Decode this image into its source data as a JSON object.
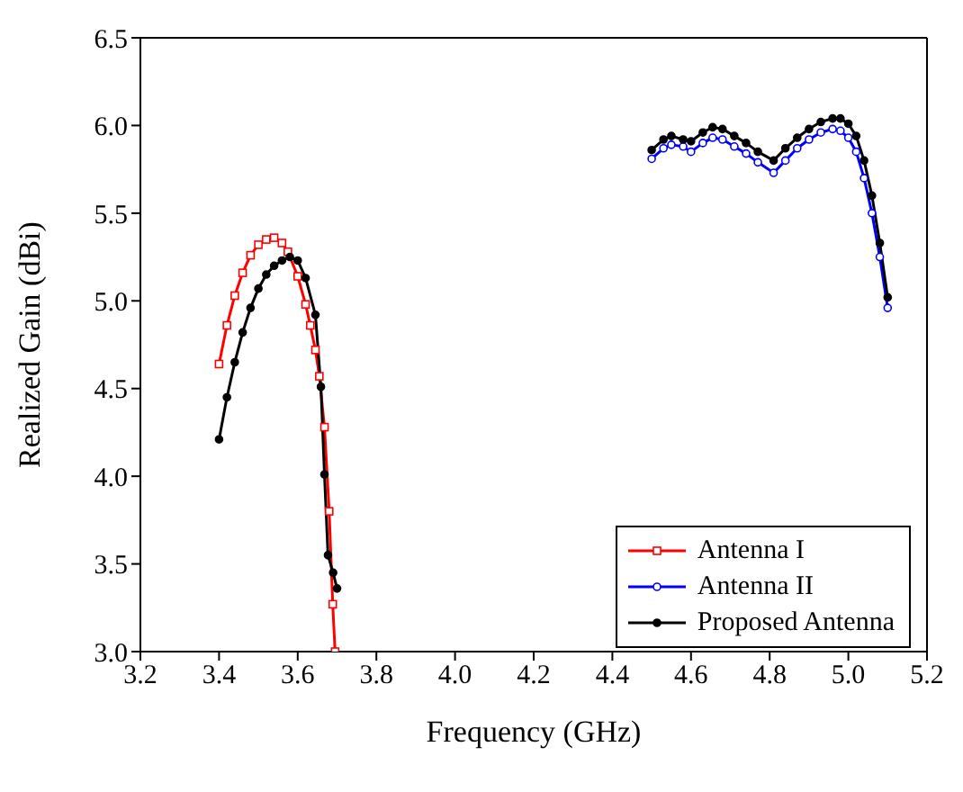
{
  "chart_data": {
    "type": "line",
    "xlabel": "Frequency (GHz)",
    "ylabel": "Realized Gain (dBi)",
    "xlim": [
      3.2,
      5.2
    ],
    "xticks": [
      3.2,
      3.4,
      3.6,
      3.8,
      {
        "value": 4,
        "label": "4.0"
      },
      4.2,
      4.4,
      4.6,
      4.8,
      {
        "value": 5,
        "label": "5.0"
      },
      5.2
    ],
    "ylim": [
      3.0,
      6.5
    ],
    "yticks": [
      {
        "value": 3,
        "label": "3.0"
      },
      3.5,
      {
        "value": 4,
        "label": "4.0"
      },
      4.5,
      {
        "value": 5,
        "label": "5.0"
      },
      5.5,
      {
        "value": 6,
        "label": "6.0"
      },
      6.5
    ],
    "grid": false,
    "legend": "bottom right",
    "line_style": "solid",
    "series": [
      {
        "name": "Antenna I",
        "color": "#ff0000",
        "marker": "square",
        "x": [
          3.4,
          3.42,
          3.44,
          3.46,
          3.48,
          3.5,
          3.52,
          3.54,
          3.56,
          3.575,
          3.6,
          3.62,
          3.632,
          3.645,
          3.655,
          3.668,
          3.68,
          3.689,
          3.695
        ],
        "values": [
          4.64,
          4.86,
          5.03,
          5.16,
          5.26,
          5.32,
          5.35,
          5.36,
          5.33,
          5.28,
          5.14,
          4.98,
          4.86,
          4.72,
          4.57,
          4.28,
          3.8,
          3.27,
          3.0
        ]
      },
      {
        "name": "Antenna II",
        "color": "#0000ff",
        "marker": "circle",
        "x": [
          4.5,
          4.53,
          4.55,
          4.58,
          4.6,
          4.63,
          4.655,
          4.68,
          4.71,
          4.74,
          4.77,
          4.81,
          4.84,
          4.87,
          4.9,
          4.93,
          4.96,
          4.98,
          5.0,
          5.02,
          5.04,
          5.06,
          5.08,
          5.1
        ],
        "values": [
          5.81,
          5.87,
          5.89,
          5.88,
          5.85,
          5.9,
          5.93,
          5.92,
          5.88,
          5.84,
          5.79,
          5.73,
          5.8,
          5.87,
          5.92,
          5.96,
          5.98,
          5.97,
          5.93,
          5.85,
          5.7,
          5.5,
          5.25,
          4.96
        ]
      },
      {
        "name": "Proposed Antenna",
        "color": "#000000",
        "marker": "circle",
        "x": [
          3.4,
          3.42,
          3.44,
          3.46,
          3.48,
          3.5,
          3.52,
          3.54,
          3.56,
          3.58,
          3.6,
          3.62,
          3.645,
          3.659,
          3.668,
          3.677,
          3.69,
          3.7,
          4.1,
          4.5,
          4.53,
          4.55,
          4.58,
          4.6,
          4.63,
          4.655,
          4.68,
          4.71,
          4.74,
          4.77,
          4.81,
          4.84,
          4.87,
          4.9,
          4.93,
          4.96,
          4.98,
          5.0,
          5.02,
          5.04,
          5.06,
          5.08,
          5.1
        ],
        "values": [
          4.21,
          4.45,
          4.65,
          4.82,
          4.96,
          5.07,
          5.15,
          5.2,
          5.23,
          5.25,
          5.23,
          5.13,
          4.92,
          4.51,
          4.01,
          3.55,
          3.45,
          3.36,
          null,
          5.86,
          5.92,
          5.94,
          5.92,
          5.91,
          5.96,
          5.99,
          5.98,
          5.94,
          5.9,
          5.85,
          5.8,
          5.87,
          5.93,
          5.98,
          6.02,
          6.04,
          6.04,
          6.01,
          5.94,
          5.8,
          5.6,
          5.33,
          5.02
        ]
      }
    ]
  }
}
